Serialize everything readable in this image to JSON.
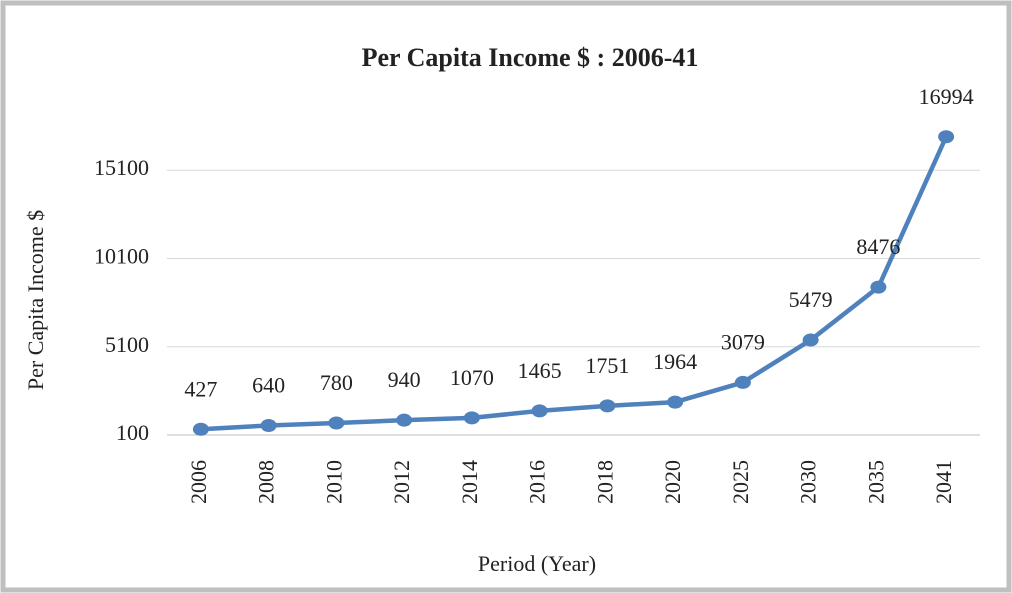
{
  "chart_data": {
    "type": "line",
    "title": "Per Capita Income $ : 2006-41",
    "x_label": "Period (Year)",
    "y_label": "Per Capita Income $",
    "categories": [
      "2006",
      "2008",
      "2010",
      "2012",
      "2014",
      "2016",
      "2018",
      "2020",
      "2025",
      "2030",
      "2035",
      "2041"
    ],
    "series": [
      {
        "name": "Per Capita Income",
        "color": "#4f81bd",
        "values": [
          427,
          640,
          780,
          940,
          1070,
          1465,
          1751,
          1964,
          3079,
          5479,
          8476,
          16994
        ]
      }
    ],
    "ylim": [
      100,
      18000
    ],
    "yticks": [
      100,
      5100,
      10100,
      15100
    ],
    "grid": true
  }
}
